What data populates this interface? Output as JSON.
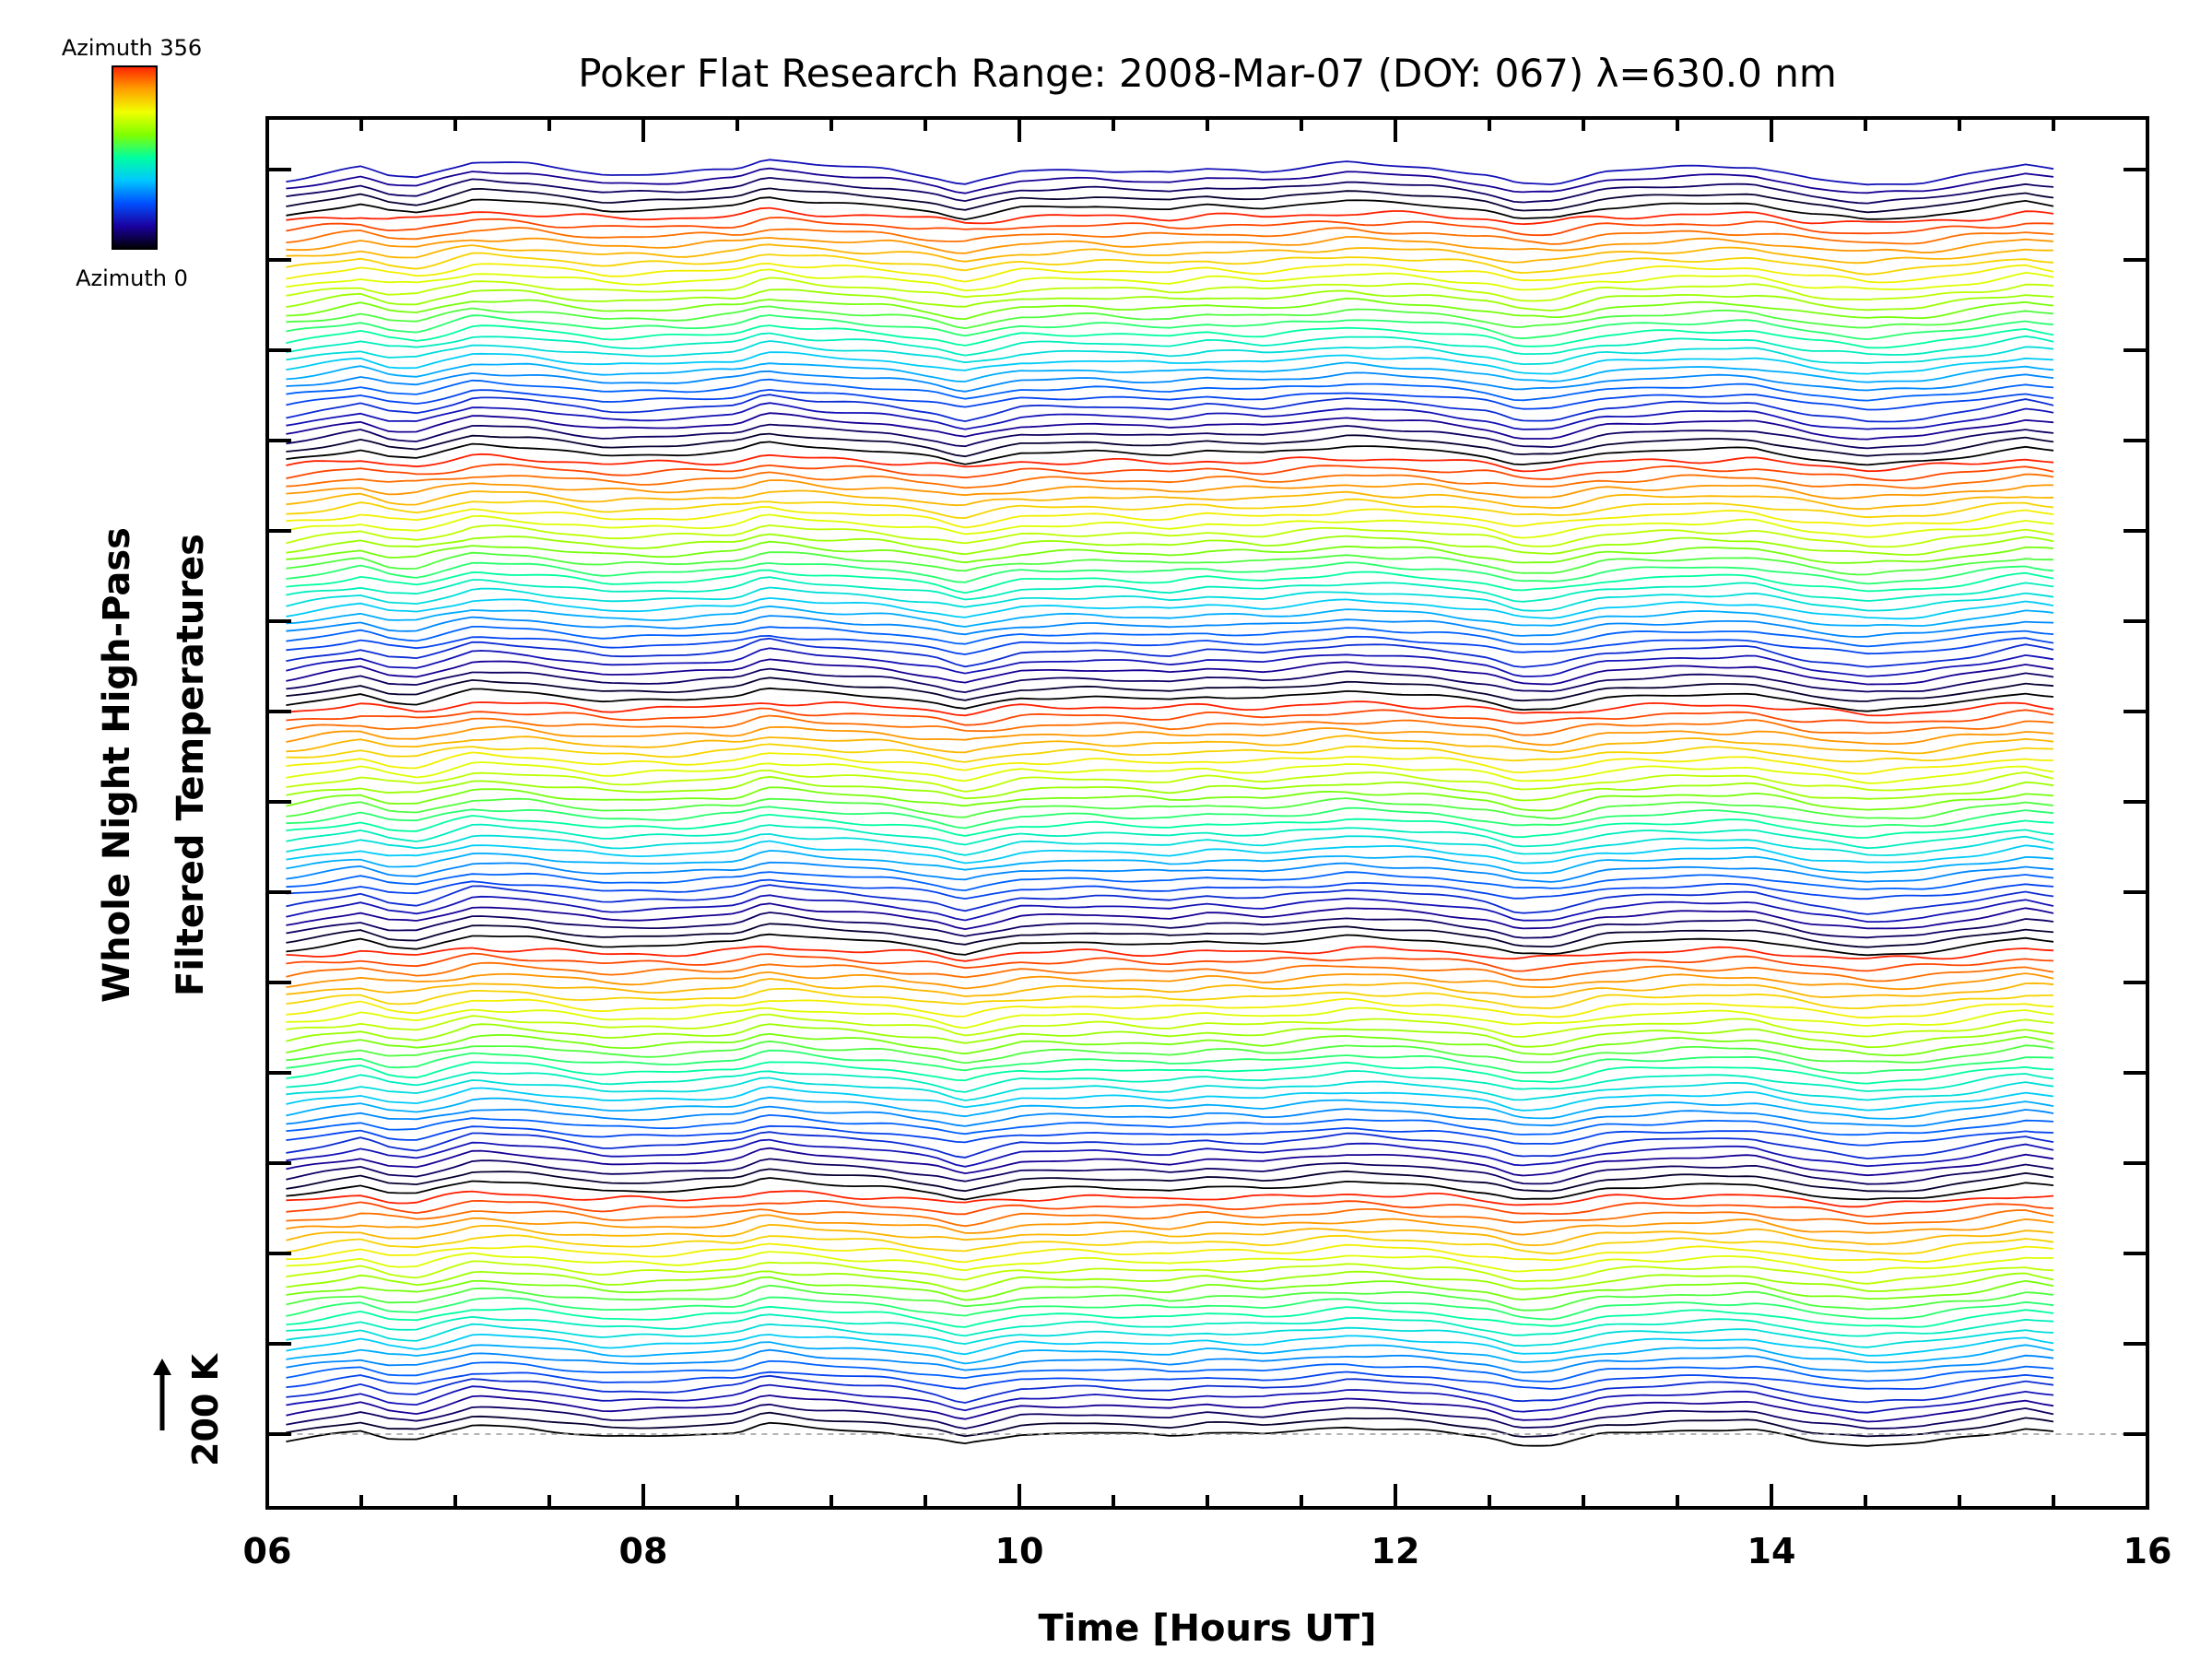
{
  "chart_data": {
    "type": "line",
    "title": "Poker Flat Research Range: 2008-Mar-07 (DOY: 067) λ=630.0 nm",
    "xlabel": "Time [Hours UT]",
    "ylabel_line1": "Whole Night High-Pass",
    "ylabel_line2": "Filtered Temperatures",
    "xlim": [
      6,
      16
    ],
    "x_ticks": [
      "06",
      "08",
      "10",
      "12",
      "14",
      "16"
    ],
    "x_start": 6.1,
    "x_end": 15.5,
    "scale_bar_label": "200 K",
    "colorbar": {
      "label_top": "Azimuth 356",
      "label_bottom": "Azimuth 0",
      "range": [
        0,
        356
      ],
      "colors": [
        "#000000",
        "#1a00a0",
        "#0050ff",
        "#00c8ff",
        "#00ffa0",
        "#80ff00",
        "#f0ff00",
        "#ffa000",
        "#ff2000"
      ]
    },
    "series_count": 140,
    "azimuth_cycle": 27,
    "common_profile": {
      "x": [
        6.1,
        6.5,
        6.65,
        6.8,
        7.1,
        7.4,
        7.8,
        8.2,
        8.5,
        8.65,
        8.9,
        9.3,
        9.55,
        9.7,
        10.0,
        10.4,
        10.8,
        11.0,
        11.3,
        11.75,
        12.2,
        12.5,
        12.65,
        12.85,
        13.1,
        13.5,
        13.9,
        14.2,
        14.5,
        14.8,
        15.1,
        15.35,
        15.5
      ],
      "y": [
        -10,
        5,
        -5,
        -7,
        12,
        8,
        -4,
        -2,
        3,
        15,
        8,
        2,
        -6,
        -15,
        0,
        2,
        -2,
        3,
        0,
        10,
        4,
        -5,
        -15,
        -14,
        0,
        5,
        6,
        -8,
        -16,
        -12,
        -2,
        8,
        3
      ]
    },
    "grid": false,
    "legend": "none"
  }
}
